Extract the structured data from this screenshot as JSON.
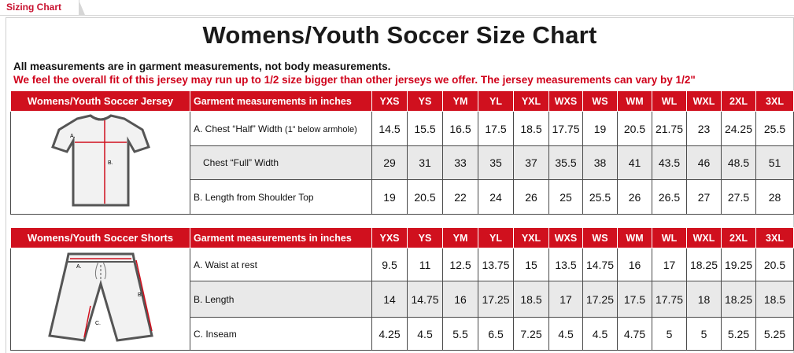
{
  "tab": {
    "label": "Sizing Chart"
  },
  "title": "Womens/Youth Soccer Size Chart",
  "notes": {
    "line1": "All measurements are in garment measurements, not body measurements.",
    "line2": "We feel the overall fit of this jersey may run up to 1/2 size bigger than other jerseys we offer. The jersey measurements can vary by 1/2\""
  },
  "sizes": [
    "YXS",
    "YS",
    "YM",
    "YL",
    "YXL",
    "WXS",
    "WS",
    "WM",
    "WL",
    "WXL",
    "2XL",
    "3XL"
  ],
  "jersey": {
    "header": "Womens/Youth Soccer Jersey",
    "measure_header": "Garment measurements in inches",
    "rows": [
      {
        "label_main": "A. Chest “Half” Width ",
        "label_sub": "(1” below armhole)",
        "values": [
          "14.5",
          "15.5",
          "16.5",
          "17.5",
          "18.5",
          "17.75",
          "19",
          "20.5",
          "21.75",
          "23",
          "24.25",
          "25.5"
        ]
      },
      {
        "label_main": "Chest “Full” Width",
        "label_sub": "",
        "values": [
          "29",
          "31",
          "33",
          "35",
          "37",
          "35.5",
          "38",
          "41",
          "43.5",
          "46",
          "48.5",
          "51"
        ]
      },
      {
        "label_main": "B. Length from Shoulder Top",
        "label_sub": "",
        "values": [
          "19",
          "20.5",
          "22",
          "24",
          "26",
          "25",
          "25.5",
          "26",
          "26.5",
          "27",
          "27.5",
          "28"
        ]
      }
    ],
    "diagram_labels": {
      "a": "A.",
      "b": "B."
    }
  },
  "shorts": {
    "header": "Womens/Youth Soccer Shorts",
    "measure_header": "Garment measurements in inches",
    "rows": [
      {
        "label_main": "A. Waist at rest",
        "values": [
          "9.5",
          "11",
          "12.5",
          "13.75",
          "15",
          "13.5",
          "14.75",
          "16",
          "17",
          "18.25",
          "19.25",
          "20.5"
        ]
      },
      {
        "label_main": "B. Length",
        "values": [
          "14",
          "14.75",
          "16",
          "17.25",
          "18.5",
          "17",
          "17.25",
          "17.5",
          "17.75",
          "18",
          "18.25",
          "18.5"
        ]
      },
      {
        "label_main": "C. Inseam",
        "values": [
          "4.25",
          "4.5",
          "5.5",
          "6.5",
          "7.25",
          "4.5",
          "4.5",
          "4.75",
          "5",
          "5",
          "5.25",
          "5.25"
        ]
      }
    ],
    "diagram_labels": {
      "a": "A.",
      "b": "B.",
      "c": "C."
    }
  },
  "colors": {
    "header_red": "#d0101e",
    "note_red": "#d0021b",
    "row_gray": "#e9e9e9"
  }
}
